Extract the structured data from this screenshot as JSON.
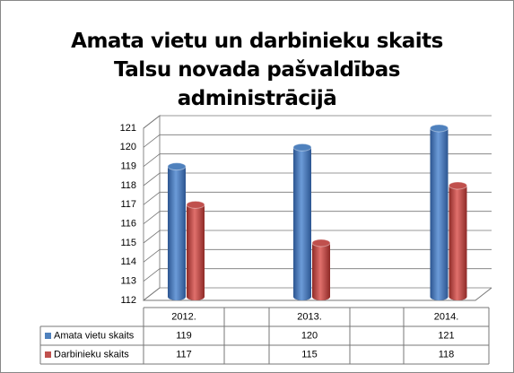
{
  "chart_data": {
    "type": "bar3d",
    "title": "Amata vietu un darbinieku skaits Talsu novada pašvaldības administrācijā",
    "categories": [
      "2012.",
      "2013.",
      "2014."
    ],
    "series": [
      {
        "name": "Amata vietu skaits",
        "color": "#4f81bd",
        "values": [
          119,
          120,
          121
        ]
      },
      {
        "name": "Darbinieku skaits",
        "color": "#c0504d",
        "values": [
          117,
          115,
          118
        ]
      }
    ],
    "ylim": [
      112,
      121
    ],
    "yticks": [
      112,
      113,
      114,
      115,
      116,
      117,
      118,
      119,
      120,
      121
    ],
    "grid": true
  }
}
